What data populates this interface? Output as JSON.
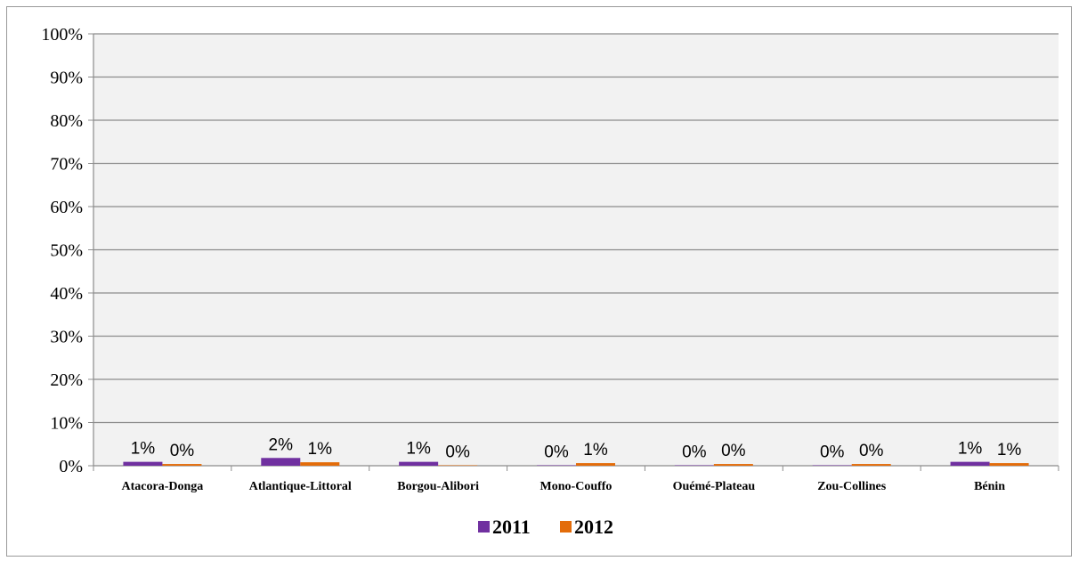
{
  "chart_data": {
    "type": "bar",
    "categories": [
      "Atacora-Donga",
      "Atlantique-Littoral",
      "Borgou-Alibori",
      "Mono-Couffo",
      "Ouémé-Plateau",
      "Zou-Collines",
      "Bénin"
    ],
    "series": [
      {
        "name": "2011",
        "color": "#7030a0",
        "values": [
          0.9,
          1.8,
          0.9,
          0.1,
          0.1,
          0.1,
          0.9
        ],
        "labels": [
          "1%",
          "2%",
          "1%",
          "0%",
          "0%",
          "0%",
          "1%"
        ]
      },
      {
        "name": "2012",
        "color": "#e36c0a",
        "values": [
          0.4,
          0.8,
          0.1,
          0.6,
          0.4,
          0.4,
          0.6
        ],
        "labels": [
          "0%",
          "1%",
          "0%",
          "1%",
          "0%",
          "0%",
          "1%"
        ]
      }
    ],
    "ylim": [
      0,
      100
    ],
    "yticks": [
      "0%",
      "10%",
      "20%",
      "30%",
      "40%",
      "50%",
      "60%",
      "70%",
      "80%",
      "90%",
      "100%"
    ],
    "grid": true,
    "legend_position": "bottom",
    "plot_background": "#f2f2f2"
  }
}
